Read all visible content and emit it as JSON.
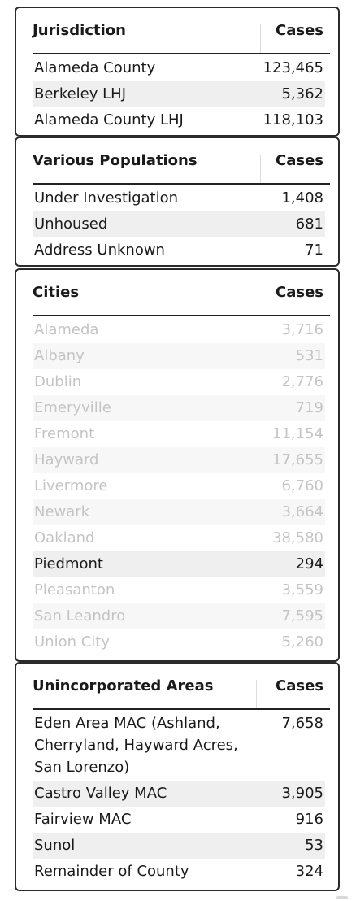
{
  "jurisdiction": {
    "title": "Jurisdiction",
    "cases_label": "Cases",
    "rows": [
      {
        "name": "Alameda County",
        "cases": "123,465"
      },
      {
        "name": "Berkeley LHJ",
        "cases": "5,362"
      },
      {
        "name": "Alameda County LHJ",
        "cases": "118,103"
      }
    ]
  },
  "various": {
    "title": "Various Populations",
    "cases_label": "Cases",
    "rows": [
      {
        "name": "Under Investigation",
        "cases": "1,408"
      },
      {
        "name": "Unhoused",
        "cases": "681"
      },
      {
        "name": "Address Unknown",
        "cases": "71"
      }
    ]
  },
  "cities": {
    "title": "Cities",
    "cases_label": "Cases",
    "highlighted": "Piedmont",
    "rows": [
      {
        "name": "Alameda",
        "cases": "3,716"
      },
      {
        "name": "Albany",
        "cases": "531"
      },
      {
        "name": "Dublin",
        "cases": "2,776"
      },
      {
        "name": "Emeryville",
        "cases": "719"
      },
      {
        "name": "Fremont",
        "cases": "11,154"
      },
      {
        "name": "Hayward",
        "cases": "17,655"
      },
      {
        "name": "Livermore",
        "cases": "6,760"
      },
      {
        "name": "Newark",
        "cases": "3,664"
      },
      {
        "name": "Oakland",
        "cases": "38,580"
      },
      {
        "name": "Piedmont",
        "cases": "294"
      },
      {
        "name": "Pleasanton",
        "cases": "3,559"
      },
      {
        "name": "San Leandro",
        "cases": "7,595"
      },
      {
        "name": "Union City",
        "cases": "5,260"
      }
    ]
  },
  "unincorporated": {
    "title": "Unincorporated Areas",
    "cases_label": "Cases",
    "rows": [
      {
        "name": "Eden Area MAC (Ashland, Cherryland, Hayward Acres, San Lorenzo)",
        "cases": "7,658"
      },
      {
        "name": "Castro Valley MAC",
        "cases": "3,905"
      },
      {
        "name": "Fairview MAC",
        "cases": "916"
      },
      {
        "name": "Sunol",
        "cases": "53"
      },
      {
        "name": "Remainder of County",
        "cases": "324"
      }
    ]
  },
  "colors": {
    "border": "#2b2b2b",
    "shade": "#efefef",
    "faded_text": "#c4c4c4"
  }
}
